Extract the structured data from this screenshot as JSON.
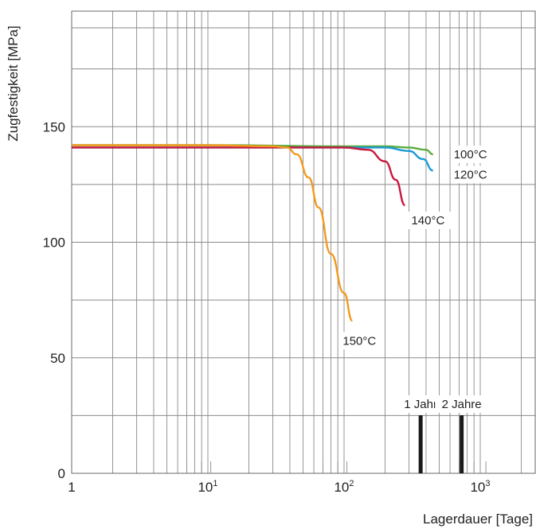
{
  "chart_data": {
    "type": "line",
    "title": "",
    "xlabel": "Lagerdauer [Tage]",
    "ylabel": "Zugfestigkeit [MPa]",
    "x_scale": "log",
    "xlim": [
      1,
      2500
    ],
    "ylim": [
      0,
      200
    ],
    "grid": true,
    "x_ticks": [
      {
        "value": 1,
        "base": "1",
        "exp": ""
      },
      {
        "value": 10,
        "base": "10",
        "exp": "1"
      },
      {
        "value": 100,
        "base": "10",
        "exp": "2"
      },
      {
        "value": 1000,
        "base": "10",
        "exp": "3"
      }
    ],
    "y_ticks": [
      {
        "value": 0,
        "label": "0"
      },
      {
        "value": 50,
        "label": "50"
      },
      {
        "value": 100,
        "label": "100"
      },
      {
        "value": 150,
        "label": "150"
      }
    ],
    "series": [
      {
        "name": "100°C",
        "color": "#5aaa3c",
        "points": [
          [
            1,
            142
          ],
          [
            10,
            142
          ],
          [
            100,
            141.5
          ],
          [
            200,
            141.5
          ],
          [
            300,
            141
          ],
          [
            400,
            140
          ],
          [
            450,
            138
          ]
        ]
      },
      {
        "name": "120°C",
        "color": "#1a9ad6",
        "points": [
          [
            1,
            141
          ],
          [
            10,
            141
          ],
          [
            100,
            141
          ],
          [
            200,
            141
          ],
          [
            300,
            139.5
          ],
          [
            380,
            136
          ],
          [
            450,
            131
          ]
        ]
      },
      {
        "name": "140°C",
        "color": "#c8173c",
        "points": [
          [
            1,
            141
          ],
          [
            10,
            141
          ],
          [
            100,
            141
          ],
          [
            150,
            140
          ],
          [
            200,
            135
          ],
          [
            240,
            127
          ],
          [
            280,
            116
          ]
        ]
      },
      {
        "name": "150°C",
        "color": "#f39a1e",
        "points": [
          [
            1,
            142
          ],
          [
            10,
            142
          ],
          [
            30,
            141.5
          ],
          [
            38,
            141
          ],
          [
            45,
            138
          ],
          [
            55,
            128
          ],
          [
            65,
            115
          ],
          [
            80,
            95
          ],
          [
            100,
            78
          ],
          [
            115,
            66
          ]
        ]
      }
    ],
    "annotations": [
      {
        "text": "1 Jahr",
        "x": 365
      },
      {
        "text": "2 Jahre",
        "x": 730
      }
    ]
  }
}
